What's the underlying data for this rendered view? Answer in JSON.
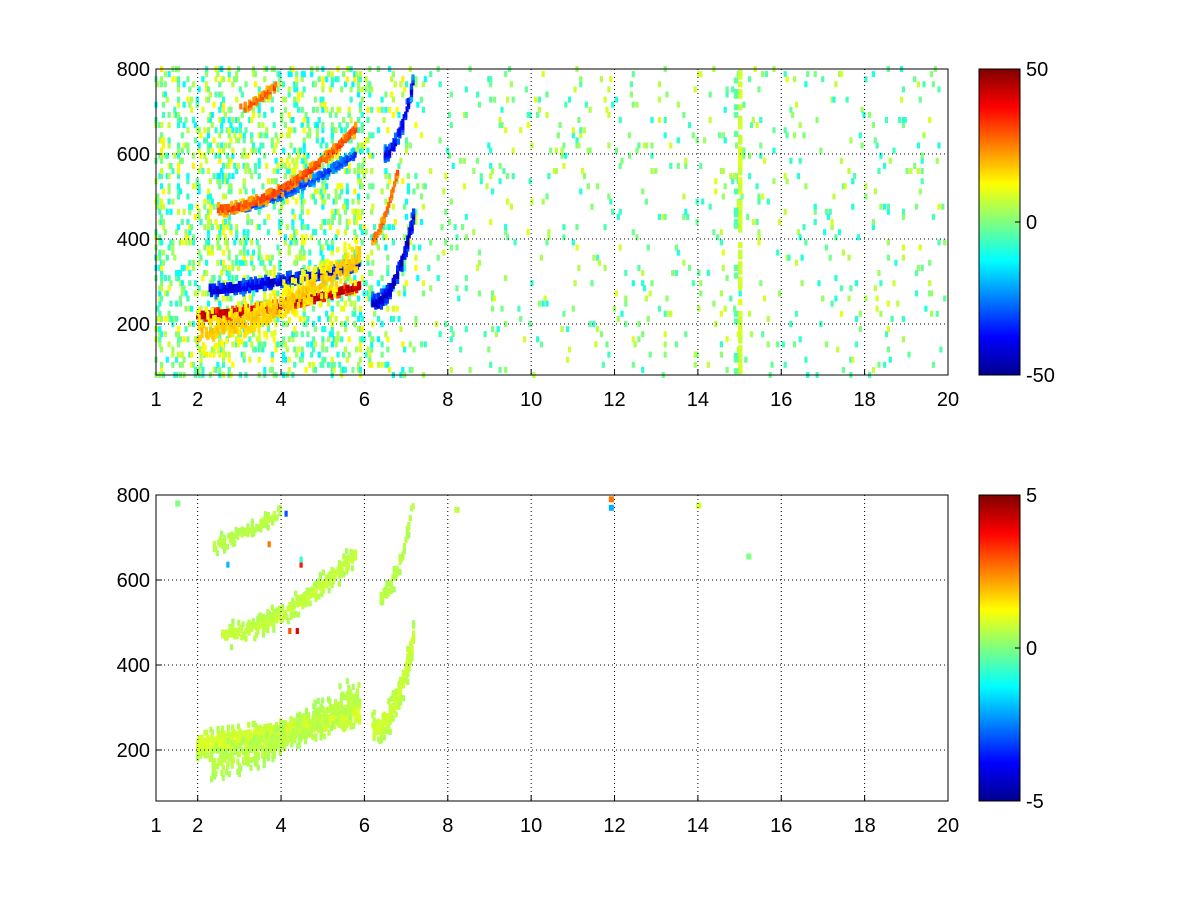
{
  "chart_data": [
    {
      "type": "heatmap",
      "x_ticks": [
        "1",
        "2",
        "4",
        "6",
        "8",
        "10",
        "12",
        "14",
        "16",
        "18",
        "20"
      ],
      "x_tick_values": [
        1,
        2,
        4,
        6,
        8,
        10,
        12,
        14,
        16,
        18,
        20
      ],
      "y_ticks": [
        "200",
        "400",
        "600",
        "800"
      ],
      "y_tick_values": [
        200,
        400,
        600,
        800
      ],
      "xlim": [
        1,
        20
      ],
      "ylim": [
        80,
        800
      ],
      "grid": true,
      "colormap": "jet",
      "colorbar": {
        "ticks": [
          "-50",
          "0",
          "50"
        ],
        "tick_values": [
          -50,
          0,
          50
        ],
        "clim": [
          -50,
          50
        ]
      },
      "features": [
        {
          "x0": 2.0,
          "x1": 5.9,
          "y0": 220,
          "y1": 290,
          "curve": 1.6,
          "value": 45,
          "width": 14,
          "density": 0.9
        },
        {
          "x0": 2.3,
          "x1": 5.9,
          "y0": 280,
          "y1": 340,
          "curve": 1.4,
          "value": -42,
          "width": 16,
          "density": 0.9
        },
        {
          "x0": 2.0,
          "x1": 5.9,
          "y0": 180,
          "y1": 360,
          "curve": 1.6,
          "value": 18,
          "width": 55,
          "density": 0.35
        },
        {
          "x0": 2.8,
          "x1": 5.8,
          "y0": 470,
          "y1": 600,
          "curve": 1.5,
          "value": -32,
          "width": 12,
          "density": 0.75
        },
        {
          "x0": 2.5,
          "x1": 5.8,
          "y0": 470,
          "y1": 660,
          "curve": 1.8,
          "value": 32,
          "width": 14,
          "density": 0.7
        },
        {
          "x0": 3.0,
          "x1": 3.9,
          "y0": 705,
          "y1": 760,
          "curve": 1.3,
          "value": 30,
          "width": 12,
          "density": 0.6
        },
        {
          "x0": 6.2,
          "x1": 7.2,
          "y0": 250,
          "y1": 460,
          "curve": 2.2,
          "value": -44,
          "width": 22,
          "density": 0.85
        },
        {
          "x0": 6.5,
          "x1": 7.2,
          "y0": 600,
          "y1": 780,
          "curve": 1.8,
          "value": -40,
          "width": 20,
          "density": 0.8
        },
        {
          "x0": 6.2,
          "x1": 6.8,
          "y0": 400,
          "y1": 560,
          "curve": 1.5,
          "value": 28,
          "width": 14,
          "density": 0.6
        }
      ],
      "noise": [
        {
          "x0": 1.0,
          "x1": 6.2,
          "density": 0.34,
          "amplitude": 14
        },
        {
          "x0": 6.2,
          "x1": 7.5,
          "density": 0.14,
          "amplitude": 14
        },
        {
          "x0": 7.5,
          "x1": 20.0,
          "density": 0.06,
          "amplitude": 10
        }
      ],
      "stripes": [
        {
          "x": 15.0,
          "value": 8,
          "density": 0.75
        },
        {
          "x": 14.9,
          "value": -4,
          "density": 0.25
        }
      ]
    },
    {
      "type": "heatmap",
      "x_ticks": [
        "1",
        "2",
        "4",
        "6",
        "8",
        "10",
        "12",
        "14",
        "16",
        "18",
        "20"
      ],
      "x_tick_values": [
        1,
        2,
        4,
        6,
        8,
        10,
        12,
        14,
        16,
        18,
        20
      ],
      "y_ticks": [
        "200",
        "400",
        "600",
        "800"
      ],
      "y_tick_values": [
        200,
        400,
        600,
        800
      ],
      "xlim": [
        1,
        20
      ],
      "ylim": [
        80,
        800
      ],
      "grid": true,
      "colormap": "jet",
      "colorbar": {
        "ticks": [
          "-5",
          "0",
          "5"
        ],
        "tick_values": [
          -5,
          0,
          5
        ],
        "clim": [
          -5,
          5
        ]
      },
      "features": [
        {
          "x0": 2.0,
          "x1": 5.9,
          "y0": 215,
          "y1": 290,
          "curve": 1.5,
          "value": 0.9,
          "width": 35,
          "density": 0.7
        },
        {
          "x0": 2.3,
          "x1": 5.9,
          "y0": 170,
          "y1": 340,
          "curve": 1.6,
          "value": 0.6,
          "width": 45,
          "density": 0.35
        },
        {
          "x0": 2.6,
          "x1": 5.8,
          "y0": 470,
          "y1": 660,
          "curve": 1.7,
          "value": 0.7,
          "width": 30,
          "density": 0.45
        },
        {
          "x0": 2.4,
          "x1": 4.0,
          "y0": 680,
          "y1": 760,
          "curve": 1.2,
          "value": 0.6,
          "width": 25,
          "density": 0.3
        },
        {
          "x0": 6.2,
          "x1": 7.2,
          "y0": 250,
          "y1": 470,
          "curve": 2.2,
          "value": 0.8,
          "width": 40,
          "density": 0.6
        },
        {
          "x0": 6.4,
          "x1": 7.2,
          "y0": 560,
          "y1": 790,
          "curve": 1.8,
          "value": 0.6,
          "width": 25,
          "density": 0.45
        }
      ],
      "noise": [
        {
          "x0": 2.5,
          "x1": 4.5,
          "density": 0.012,
          "amplitude": 4.5,
          "y0": 420,
          "y1": 790
        }
      ],
      "points": [
        {
          "x": 11.9,
          "y": 790,
          "value": 2.6
        },
        {
          "x": 11.9,
          "y": 770,
          "value": -2.0
        },
        {
          "x": 14.0,
          "y": 775,
          "value": 0.8
        },
        {
          "x": 15.2,
          "y": 655,
          "value": 0.0
        },
        {
          "x": 8.2,
          "y": 765,
          "value": 0.6
        },
        {
          "x": 1.5,
          "y": 780,
          "value": 0.0
        }
      ]
    }
  ]
}
